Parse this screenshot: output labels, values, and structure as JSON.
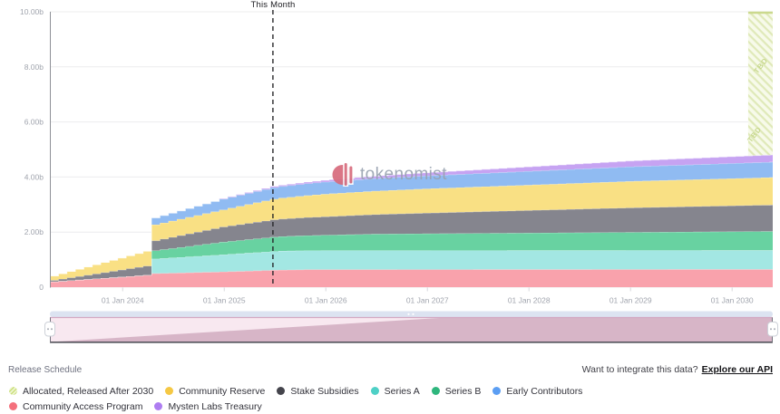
{
  "watermark": {
    "text": "tokenomist"
  },
  "footer": {
    "title": "Release Schedule",
    "api_prompt": "Want to integrate this data?",
    "api_link": "Explore our API"
  },
  "legend": {
    "items": [
      {
        "slug": "allocated-released-after-2030",
        "label": "Allocated, Released After 2030",
        "color": "#CBDF7C",
        "hatched": true
      },
      {
        "slug": "community-reserve",
        "label": "Community Reserve",
        "color": "#F5C844",
        "hatched": false
      },
      {
        "slug": "stake-subsidies",
        "label": "Stake Subsidies",
        "color": "#44444C",
        "hatched": false
      },
      {
        "slug": "series-a",
        "label": "Series A",
        "color": "#4ED0C6",
        "hatched": false
      },
      {
        "slug": "series-b",
        "label": "Series B",
        "color": "#2EB67D",
        "hatched": false
      },
      {
        "slug": "early-contributors",
        "label": "Early Contributors",
        "color": "#5B9EF3",
        "hatched": false
      },
      {
        "slug": "community-access-program",
        "label": "Community Access Program",
        "color": "#F4707C",
        "hatched": false
      },
      {
        "slug": "mysten-labs-treasury",
        "label": "Mysten Labs Treasury",
        "color": "#AE7DF1",
        "hatched": false
      }
    ]
  },
  "chart_data": {
    "type": "area",
    "stacked": true,
    "title": "Release Schedule",
    "units": "tokens (billions)",
    "grid": "horizontal",
    "ylim": [
      0,
      10
    ],
    "x_domain_months": [
      0,
      85.4
    ],
    "y_ticks": [
      {
        "value": 0,
        "label": "0"
      },
      {
        "value": 2,
        "label": "2.00b"
      },
      {
        "value": 4,
        "label": "4.00b"
      },
      {
        "value": 6,
        "label": "6.00b"
      },
      {
        "value": 8,
        "label": "8.00b"
      },
      {
        "value": 10,
        "label": "10.00b"
      }
    ],
    "x_ticks": [
      {
        "month": 8.6,
        "label": "01 Jan 2024"
      },
      {
        "month": 20.6,
        "label": "01 Jan 2025"
      },
      {
        "month": 32.6,
        "label": "01 Jan 2026"
      },
      {
        "month": 44.6,
        "label": "01 Jan 2027"
      },
      {
        "month": 56.6,
        "label": "01 Jan 2028"
      },
      {
        "month": 68.6,
        "label": "01 Jan 2029"
      },
      {
        "month": 80.6,
        "label": "01 Jan 2030"
      }
    ],
    "this_month_marker": {
      "label": "This Month",
      "month": 26.35
    },
    "tbd_region": {
      "label": "TBD",
      "from_month": 82.5,
      "to_supply": 10,
      "stripe_color": "#DFE9B8",
      "bg_color": "#F7FAEA",
      "cap_color": "#CBD98D",
      "text_color": "#C6D78B"
    },
    "series": [
      {
        "name": "Community Access Program",
        "color": "#F9A2AC",
        "points": [
          [
            0,
            0.2
          ],
          [
            11,
            0.44
          ],
          [
            12,
            0.5
          ],
          [
            20,
            0.56
          ],
          [
            26,
            0.62
          ],
          [
            30,
            0.64
          ],
          [
            85.4,
            0.65
          ]
        ]
      },
      {
        "name": "Series A",
        "color": "#A3E7E3",
        "points": [
          [
            0,
            0
          ],
          [
            11,
            0
          ],
          [
            12,
            0.53
          ],
          [
            20,
            0.62
          ],
          [
            27,
            0.69
          ],
          [
            85.4,
            0.69
          ]
        ]
      },
      {
        "name": "Series B",
        "color": "#68D2A1",
        "points": [
          [
            0,
            0
          ],
          [
            11,
            0
          ],
          [
            12,
            0.3
          ],
          [
            20,
            0.46
          ],
          [
            26,
            0.52
          ],
          [
            38,
            0.6
          ],
          [
            85.4,
            0.69
          ]
        ]
      },
      {
        "name": "Stake Subsidies",
        "color": "#85858E",
        "points": [
          [
            0,
            0.05
          ],
          [
            11,
            0.33
          ],
          [
            12,
            0.36
          ],
          [
            20,
            0.55
          ],
          [
            26,
            0.63
          ],
          [
            44,
            0.75
          ],
          [
            56,
            0.82
          ],
          [
            68,
            0.89
          ],
          [
            85.4,
            0.96
          ]
        ]
      },
      {
        "name": "Community Reserve",
        "color": "#F9E084",
        "points": [
          [
            0,
            0.16
          ],
          [
            11,
            0.54
          ],
          [
            12,
            0.58
          ],
          [
            20,
            0.62
          ],
          [
            26,
            0.75
          ],
          [
            32,
            0.82
          ],
          [
            44,
            0.88
          ],
          [
            56,
            0.92
          ],
          [
            68,
            0.96
          ],
          [
            85.4,
            1.0
          ]
        ]
      },
      {
        "name": "Early Contributors",
        "color": "#90BBF2",
        "points": [
          [
            0,
            0
          ],
          [
            11,
            0
          ],
          [
            12,
            0.25
          ],
          [
            20,
            0.39
          ],
          [
            26,
            0.42
          ],
          [
            32,
            0.44
          ],
          [
            44,
            0.47
          ],
          [
            56,
            0.5
          ],
          [
            68,
            0.53
          ],
          [
            85.4,
            0.56
          ]
        ]
      },
      {
        "name": "Mysten Labs Treasury",
        "color": "#C6A3F2",
        "points": [
          [
            0,
            0
          ],
          [
            19,
            0
          ],
          [
            20,
            0.02
          ],
          [
            26,
            0.04
          ],
          [
            32,
            0.06
          ],
          [
            44,
            0.11
          ],
          [
            56,
            0.16
          ],
          [
            68,
            0.21
          ],
          [
            85.4,
            0.26
          ]
        ]
      }
    ],
    "axis": {
      "label_color": "#A0A4AD",
      "grid_color": "#ECECEE",
      "axis_line_color": "#8E9097",
      "tick_color": "#D8D8DC",
      "marker_line_color": "#27272A"
    },
    "minimap": {
      "rail_color": "#DCE3F1",
      "bg_color": "#F8E8F0",
      "fill_color": "#D7B5C7",
      "border_top": "#D3A8C3",
      "border_bottom": "#53535B",
      "border_side": "#73737D",
      "fill_points": [
        [
          0,
          0
        ],
        [
          46,
          1
        ],
        [
          85.4,
          1
        ]
      ]
    }
  }
}
